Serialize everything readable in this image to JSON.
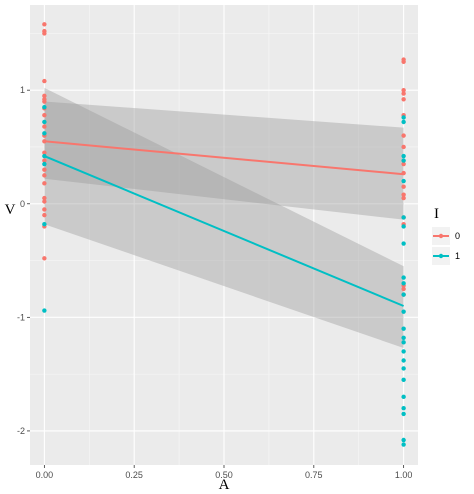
{
  "chart_data": {
    "type": "scatter",
    "xlabel": "A",
    "ylabel": "V",
    "xlim": [
      -0.04,
      1.04
    ],
    "ylim": [
      -2.3,
      1.75
    ],
    "x_ticks": [
      0.0,
      0.25,
      0.5,
      0.75,
      1.0
    ],
    "x_tick_labels": [
      "0.00",
      "0.25",
      "0.50",
      "0.75",
      "1.00"
    ],
    "y_ticks": [
      -2,
      -1,
      0,
      1
    ],
    "y_tick_labels": [
      "-2",
      "-1",
      "0",
      "1"
    ],
    "grid": true,
    "legend": {
      "title": "I",
      "position": "right",
      "entries": [
        "0",
        "1"
      ]
    },
    "series": [
      {
        "name": "0",
        "color": "#F8766D",
        "points": [
          [
            0,
            1.58
          ],
          [
            0,
            1.52
          ],
          [
            0,
            1.5
          ],
          [
            0,
            1.08
          ],
          [
            0,
            0.95
          ],
          [
            0,
            0.92
          ],
          [
            0,
            0.9
          ],
          [
            0,
            0.84
          ],
          [
            0,
            0.78
          ],
          [
            0,
            0.68
          ],
          [
            0,
            0.6
          ],
          [
            0,
            0.55
          ],
          [
            0,
            0.45
          ],
          [
            0,
            0.38
          ],
          [
            0,
            0.3
          ],
          [
            0,
            0.25
          ],
          [
            0,
            0.18
          ],
          [
            0,
            0.05
          ],
          [
            0,
            0.02
          ],
          [
            0,
            -0.05
          ],
          [
            0,
            -0.1
          ],
          [
            0,
            -0.2
          ],
          [
            0,
            -0.48
          ],
          [
            1,
            1.27
          ],
          [
            1,
            1.25
          ],
          [
            1,
            1.0
          ],
          [
            1,
            0.97
          ],
          [
            1,
            0.92
          ],
          [
            1,
            0.78
          ],
          [
            1,
            0.6
          ],
          [
            1,
            0.5
          ],
          [
            1,
            0.35
          ],
          [
            1,
            0.27
          ],
          [
            1,
            0.15
          ],
          [
            1,
            0.08
          ],
          [
            1,
            0.05
          ],
          [
            1,
            -0.12
          ],
          [
            1,
            -0.18
          ],
          [
            1,
            -0.72
          ],
          [
            1,
            -0.75
          ],
          [
            1,
            -0.8
          ]
        ],
        "fit": {
          "x": [
            0,
            1
          ],
          "y": [
            0.55,
            0.26
          ]
        },
        "ci": {
          "x": [
            0,
            1
          ],
          "lower": [
            0.22,
            -0.14
          ],
          "upper": [
            0.9,
            0.67
          ]
        }
      },
      {
        "name": "1",
        "color": "#00BFC4",
        "points": [
          [
            0,
            0.85
          ],
          [
            0,
            0.72
          ],
          [
            0,
            0.62
          ],
          [
            0,
            0.42
          ],
          [
            0,
            0.35
          ],
          [
            0,
            -0.18
          ],
          [
            0,
            -0.94
          ],
          [
            1,
            0.76
          ],
          [
            1,
            0.72
          ],
          [
            1,
            0.42
          ],
          [
            1,
            0.38
          ],
          [
            1,
            0.2
          ],
          [
            1,
            -0.12
          ],
          [
            1,
            -0.2
          ],
          [
            1,
            -0.35
          ],
          [
            1,
            -0.65
          ],
          [
            1,
            -0.7
          ],
          [
            1,
            -0.8
          ],
          [
            1,
            -0.95
          ],
          [
            1,
            -1.1
          ],
          [
            1,
            -1.18
          ],
          [
            1,
            -1.22
          ],
          [
            1,
            -1.3
          ],
          [
            1,
            -1.38
          ],
          [
            1,
            -1.45
          ],
          [
            1,
            -1.55
          ],
          [
            1,
            -1.7
          ],
          [
            1,
            -1.8
          ],
          [
            1,
            -1.85
          ],
          [
            1,
            -2.08
          ],
          [
            1,
            -2.12
          ]
        ],
        "fit": {
          "x": [
            0,
            1
          ],
          "y": [
            0.42,
            -0.9
          ]
        },
        "ci": {
          "x": [
            0,
            1
          ],
          "lower": [
            -0.18,
            -1.27
          ],
          "upper": [
            1.02,
            -0.55
          ]
        }
      }
    ]
  }
}
